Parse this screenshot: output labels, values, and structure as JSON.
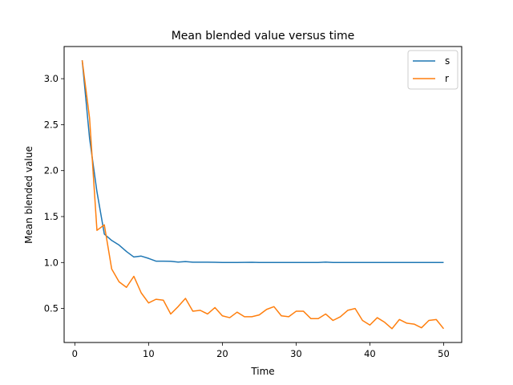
{
  "chart_data": {
    "type": "line",
    "title": "Mean blended value versus time",
    "xlabel": "Time",
    "ylabel": "Mean blended value",
    "xlim": [
      -1.45,
      52.45
    ],
    "ylim": [
      0.13,
      3.35
    ],
    "xticks": [
      0,
      10,
      20,
      30,
      40,
      50
    ],
    "yticks": [
      0.5,
      1.0,
      1.5,
      2.0,
      2.5,
      3.0
    ],
    "ytick_labels": [
      "0.5",
      "1.0",
      "1.5",
      "2.0",
      "2.5",
      "3.0"
    ],
    "grid": false,
    "legend_position": "top-right",
    "x": [
      1,
      2,
      3,
      4,
      5,
      6,
      7,
      8,
      9,
      10,
      11,
      12,
      13,
      14,
      15,
      16,
      17,
      18,
      19,
      20,
      21,
      22,
      23,
      24,
      25,
      26,
      27,
      28,
      29,
      30,
      31,
      32,
      33,
      34,
      35,
      36,
      37,
      38,
      39,
      40,
      41,
      42,
      43,
      44,
      45,
      46,
      47,
      48,
      49,
      50
    ],
    "series": [
      {
        "name": "s",
        "color": "#1f77b4",
        "values": [
          3.2,
          2.35,
          1.77,
          1.31,
          1.24,
          1.19,
          1.12,
          1.06,
          1.07,
          1.045,
          1.015,
          1.015,
          1.014,
          1.005,
          1.01,
          1.004,
          1.004,
          1.004,
          1.003,
          1.001,
          1.001,
          1.001,
          1.002,
          1.003,
          1.001,
          1.001,
          1.001,
          1.0,
          1.0,
          1.0,
          1.0,
          1.0,
          1.0,
          1.005,
          1.0,
          1.0,
          1.0,
          1.0,
          1.0,
          1.0,
          1.0,
          1.0,
          1.0,
          1.0,
          1.0,
          1.0,
          1.0,
          1.0,
          1.0,
          1.0
        ]
      },
      {
        "name": "r",
        "color": "#ff7f0e",
        "values": [
          3.2,
          2.57,
          1.35,
          1.41,
          0.93,
          0.79,
          0.73,
          0.85,
          0.67,
          0.56,
          0.6,
          0.59,
          0.44,
          0.52,
          0.61,
          0.47,
          0.48,
          0.44,
          0.51,
          0.42,
          0.4,
          0.46,
          0.41,
          0.41,
          0.43,
          0.49,
          0.52,
          0.42,
          0.41,
          0.47,
          0.47,
          0.39,
          0.39,
          0.44,
          0.37,
          0.41,
          0.48,
          0.5,
          0.37,
          0.32,
          0.4,
          0.35,
          0.28,
          0.38,
          0.34,
          0.33,
          0.29,
          0.37,
          0.38,
          0.28
        ]
      }
    ]
  }
}
